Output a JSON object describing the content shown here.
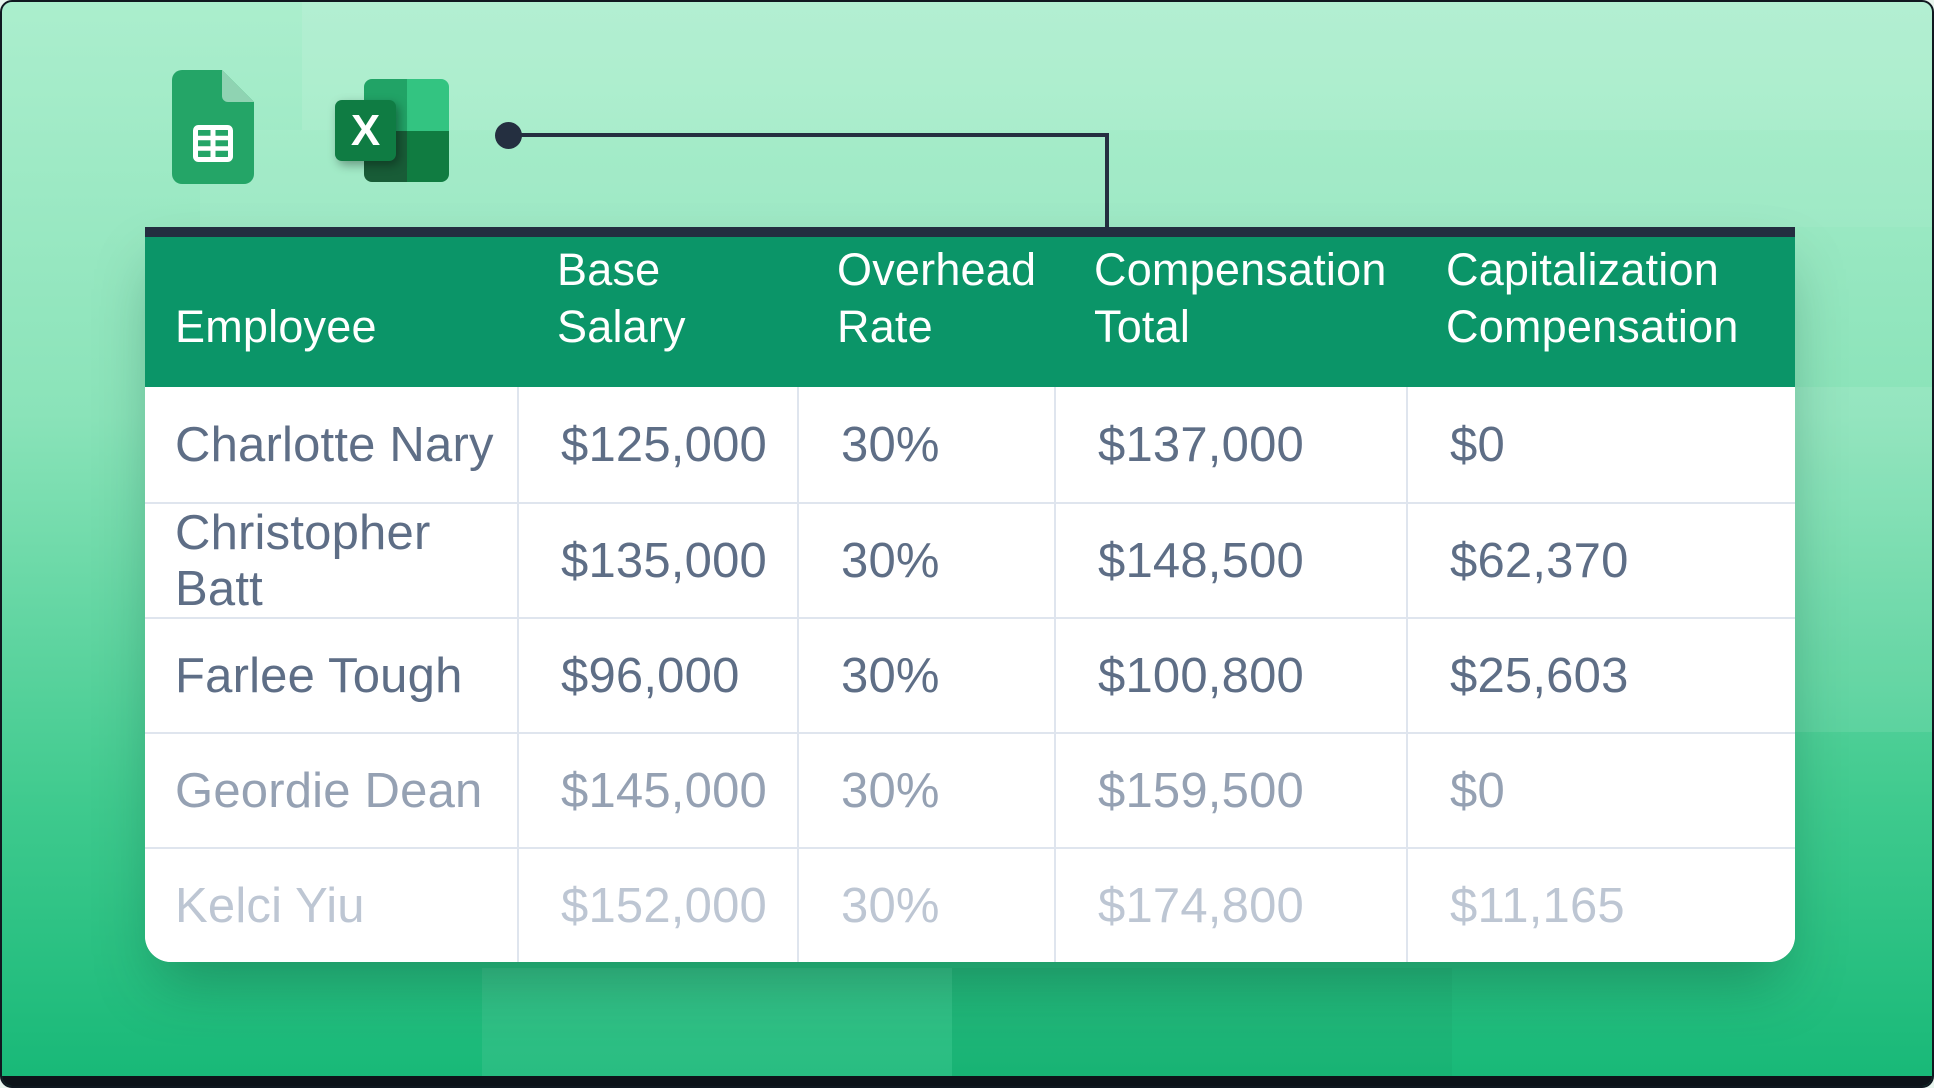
{
  "colors": {
    "bg_top": "#abeecd",
    "bg_mid": "#8ae3b9",
    "bg_low": "#3fca8e",
    "bg_bottom": "#17b877",
    "frame_border": "#101820",
    "bottom_bar": "#0d1319",
    "connector": "#242f40",
    "table_top_bar": "#232e40",
    "header_bg": "#0b9568",
    "header_text": "#ffffff",
    "body_bg": "#ffffff",
    "divider": "#dfe5ee",
    "sheets_green": "#24a567",
    "sheets_fold": "#8fd3b2",
    "excel_tl": "#21a366",
    "excel_tr": "#33c481",
    "excel_bl": "#185c37",
    "excel_br": "#107c41",
    "excel_tile": "#0f7c43"
  },
  "icons": {
    "sheets_label": "google-sheets-icon",
    "excel_label": "excel-icon",
    "excel_letter": "X"
  },
  "table": {
    "header": {
      "columns": [
        {
          "key": "employee",
          "lines": [
            "Employee"
          ]
        },
        {
          "key": "base-salary",
          "lines": [
            "Base",
            "Salary"
          ]
        },
        {
          "key": "overhead-rate",
          "lines": [
            "Overhead",
            "Rate"
          ]
        },
        {
          "key": "compensation-total",
          "lines": [
            "Compensation",
            "Total"
          ]
        },
        {
          "key": "capitalization-compensation",
          "lines": [
            "Capitalization",
            "Compensation"
          ]
        }
      ]
    },
    "body": {
      "rows": [
        {
          "text_color": "#5e6e86",
          "cells": [
            "Charlotte Nary",
            "$125,000",
            "30%",
            "$137,000",
            "$0"
          ]
        },
        {
          "text_color": "#5e6e86",
          "cells": [
            "Christopher Batt",
            "$135,000",
            "30%",
            "$148,500",
            "$62,370"
          ]
        },
        {
          "text_color": "#5e6e86",
          "cells": [
            "Farlee Tough",
            "$96,000",
            "30%",
            "$100,800",
            "$25,603"
          ]
        },
        {
          "text_color": "#95a1b3",
          "cells": [
            "Geordie Dean",
            "$145,000",
            "30%",
            "$159,500",
            "$0"
          ]
        },
        {
          "text_color": "#bdc6d3",
          "cells": [
            "Kelci Yiu",
            "$152,000",
            "30%",
            "$174,800",
            "$11,165"
          ]
        }
      ]
    }
  },
  "chart_data": {
    "type": "table",
    "title": "",
    "columns": [
      "Employee",
      "Base Salary",
      "Overhead Rate",
      "Compensation Total",
      "Capitalization Compensation"
    ],
    "rows": [
      [
        "Charlotte Nary",
        "$125,000",
        "30%",
        "$137,000",
        "$0"
      ],
      [
        "Christopher Batt",
        "$135,000",
        "30%",
        "$148,500",
        "$62,370"
      ],
      [
        "Farlee Tough",
        "$96,000",
        "30%",
        "$100,800",
        "$25,603"
      ],
      [
        "Geordie Dean",
        "$145,000",
        "30%",
        "$159,500",
        "$0"
      ],
      [
        "Kelci Yiu",
        "$152,000",
        "30%",
        "$174,800",
        "$11,165"
      ]
    ]
  }
}
